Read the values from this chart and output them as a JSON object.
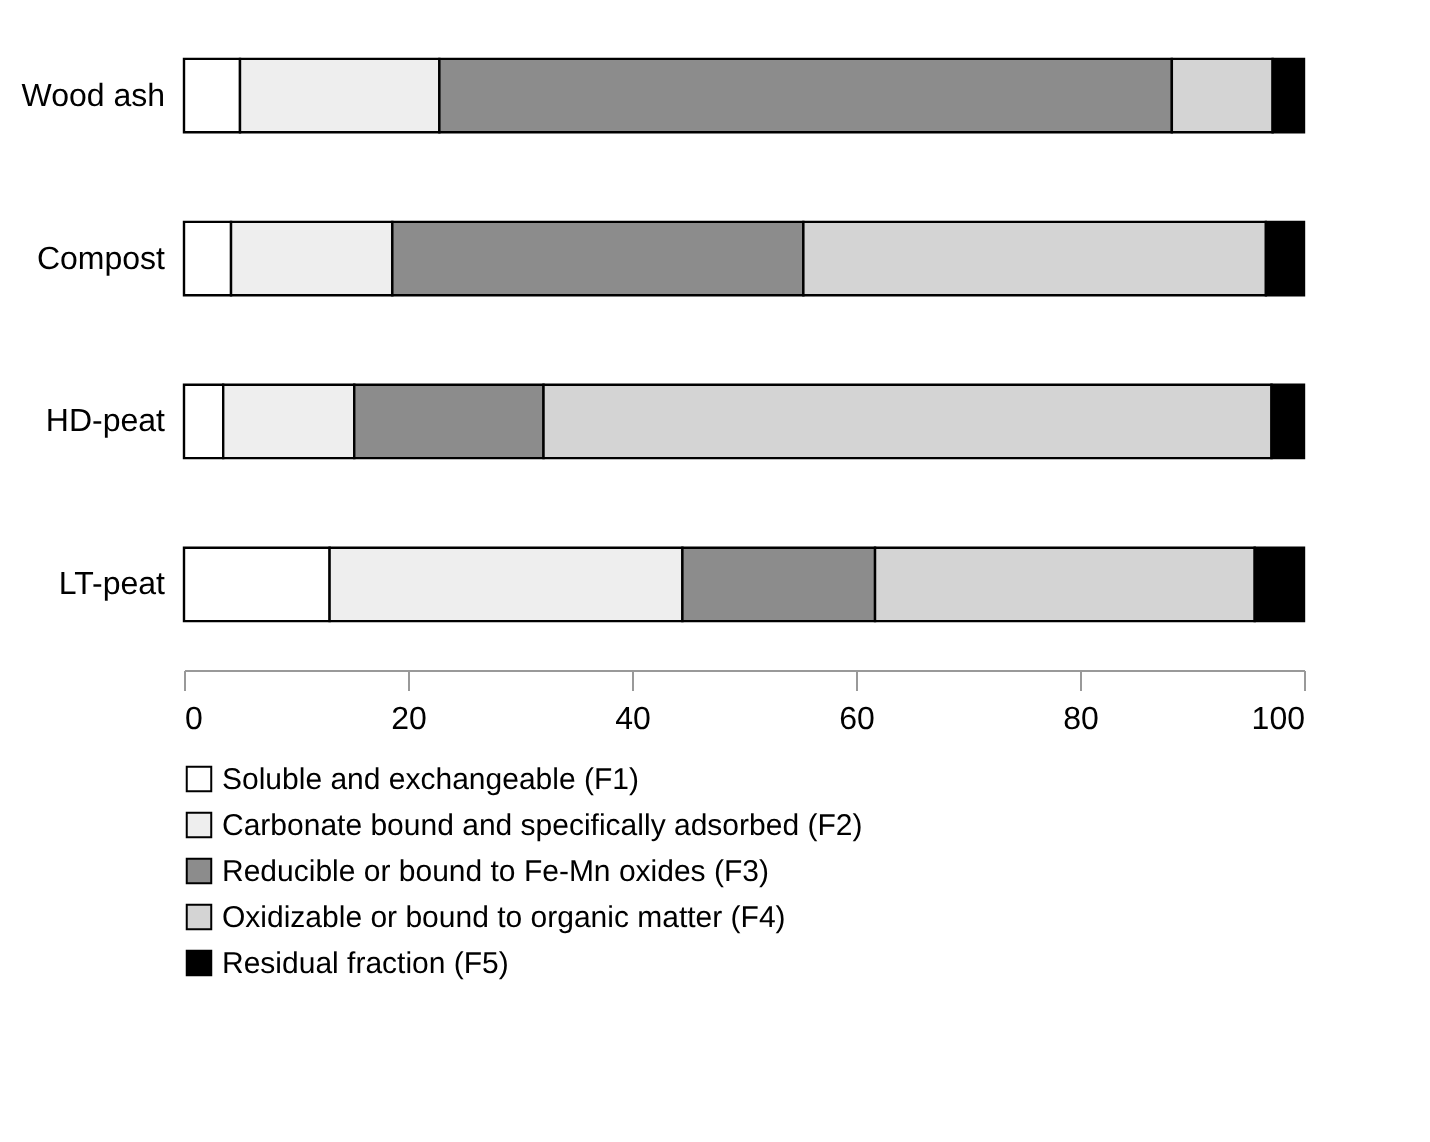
{
  "chart_data": {
    "type": "bar",
    "orientation": "horizontal",
    "stacked": true,
    "categories": [
      "Wood ash",
      "Compost",
      "HD-peat",
      "LT-peat"
    ],
    "series": [
      {
        "name": "Soluble and exchangeable (F1)",
        "color": "#ffffff",
        "values": [
          5.0,
          4.2,
          3.5,
          13.0
        ]
      },
      {
        "name": "Carbonate bound and specifically adsorbed (F2)",
        "color": "#eeeeee",
        "values": [
          17.8,
          14.4,
          11.7,
          31.5
        ]
      },
      {
        "name": "Reducible or bound to Fe-Mn oxides (F3)",
        "color": "#8c8c8c",
        "values": [
          65.4,
          36.7,
          16.9,
          17.2
        ]
      },
      {
        "name": "Oxidizable or bound to organic matter (F4)",
        "color": "#d4d4d4",
        "values": [
          9.0,
          41.3,
          65.0,
          33.9
        ]
      },
      {
        "name": "Residual fraction (F5)",
        "color": "#000000",
        "values": [
          2.8,
          3.4,
          2.9,
          4.4
        ]
      }
    ],
    "xlim": [
      0,
      100
    ],
    "xticks": [
      0,
      20,
      40,
      60,
      80,
      100
    ],
    "grid": false,
    "legend": "bottom"
  }
}
